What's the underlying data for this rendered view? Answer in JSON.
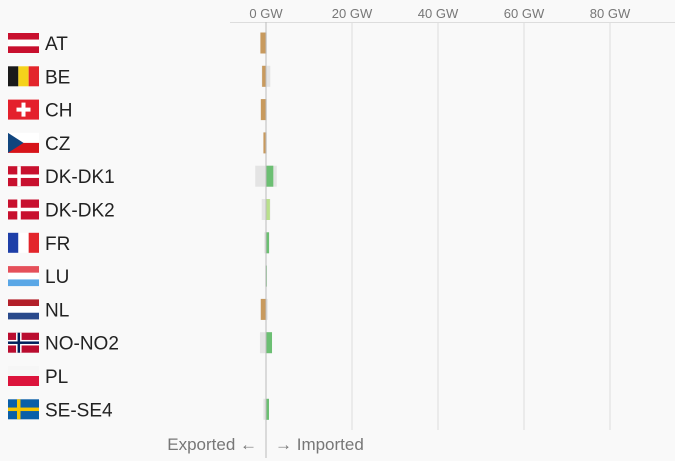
{
  "chart_data": {
    "type": "bar",
    "orientation": "horizontal",
    "x_unit": "GW",
    "xlim": [
      -2,
      88
    ],
    "x_ticks": [
      0,
      20,
      40,
      60,
      80
    ],
    "tick_labels": [
      "0 GW",
      "20 GW",
      "40 GW",
      "60 GW",
      "80 GW"
    ],
    "grid": true,
    "footer": {
      "left": "Exported ←",
      "right": "→ Imported"
    },
    "colors": {
      "export": "#c89a5e",
      "import_dark": "#6cbf73",
      "import_light": "#b9e08c",
      "capacity": "#e4e4e4",
      "grid": "#dddddd",
      "axis": "#bbbbbb"
    },
    "rows": [
      {
        "label": "AT",
        "flag": "AT",
        "value": -1.3,
        "cap_min": -1.3,
        "cap_max": 0.2,
        "color": "export"
      },
      {
        "label": "BE",
        "flag": "BE",
        "value": -0.9,
        "cap_min": -1.0,
        "cap_max": 1.0,
        "color": "export"
      },
      {
        "label": "CH",
        "flag": "CH",
        "value": -1.2,
        "cap_min": -1.2,
        "cap_max": 0.2,
        "color": "export"
      },
      {
        "label": "CZ",
        "flag": "CZ",
        "value": -0.6,
        "cap_min": -0.6,
        "cap_max": 0.2,
        "color": "export"
      },
      {
        "label": "DK-DK1",
        "flag": "DK",
        "value": 1.7,
        "cap_min": -2.5,
        "cap_max": 2.5,
        "color": "import_dark"
      },
      {
        "label": "DK-DK2",
        "flag": "DK",
        "value": 0.9,
        "cap_min": -1.0,
        "cap_max": 1.0,
        "color": "import_light"
      },
      {
        "label": "FR",
        "flag": "FR",
        "value": 0.7,
        "cap_min": -0.4,
        "cap_max": 0.8,
        "color": "import_dark"
      },
      {
        "label": "LU",
        "flag": "LU",
        "value": 0.2,
        "cap_min": -0.2,
        "cap_max": 0.2,
        "color": "import_dark"
      },
      {
        "label": "NL",
        "flag": "NL",
        "value": -1.2,
        "cap_min": -1.3,
        "cap_max": 0.4,
        "color": "export"
      },
      {
        "label": "NO-NO2",
        "flag": "NO",
        "value": 1.4,
        "cap_min": -1.4,
        "cap_max": 1.4,
        "color": "import_dark"
      },
      {
        "label": "PL",
        "flag": "PL",
        "value": 0,
        "cap_min": 0,
        "cap_max": 0,
        "color": "import_dark"
      },
      {
        "label": "SE-SE4",
        "flag": "SE",
        "value": 0.7,
        "cap_min": -0.6,
        "cap_max": 0.7,
        "color": "import_dark"
      }
    ]
  }
}
